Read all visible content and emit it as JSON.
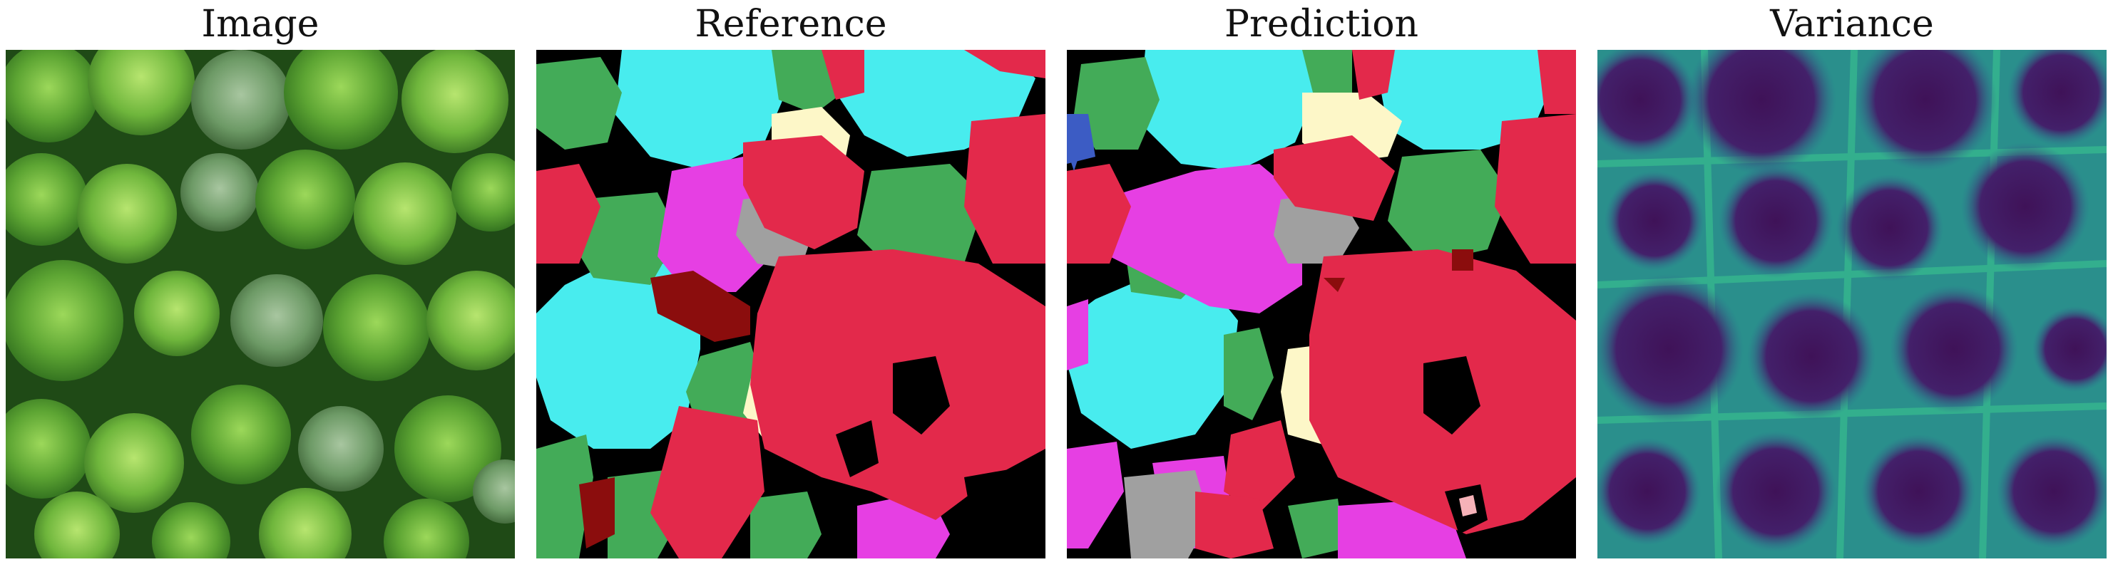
{
  "panels": [
    {
      "id": "image",
      "title": "Image"
    },
    {
      "id": "reference",
      "title": "Reference"
    },
    {
      "id": "prediction",
      "title": "Prediction"
    },
    {
      "id": "variance",
      "title": "Variance"
    }
  ],
  "colors": {
    "background_black": "#000000",
    "cyan": "#48ecee",
    "red": "#e3294b",
    "magenta": "#e63fe3",
    "green": "#43ab58",
    "gray": "#a0a0a0",
    "cream": "#fdf7c8",
    "dark_red": "#8b0d0d",
    "blue": "#3c5cc4",
    "pink": "#f6b2b8",
    "forest_dark": "#1d4a14",
    "forest_light": "#8cd04a",
    "variance_low": "#3f1258",
    "variance_mid": "#2f6b8e",
    "variance_high": "#3ccf8f"
  }
}
